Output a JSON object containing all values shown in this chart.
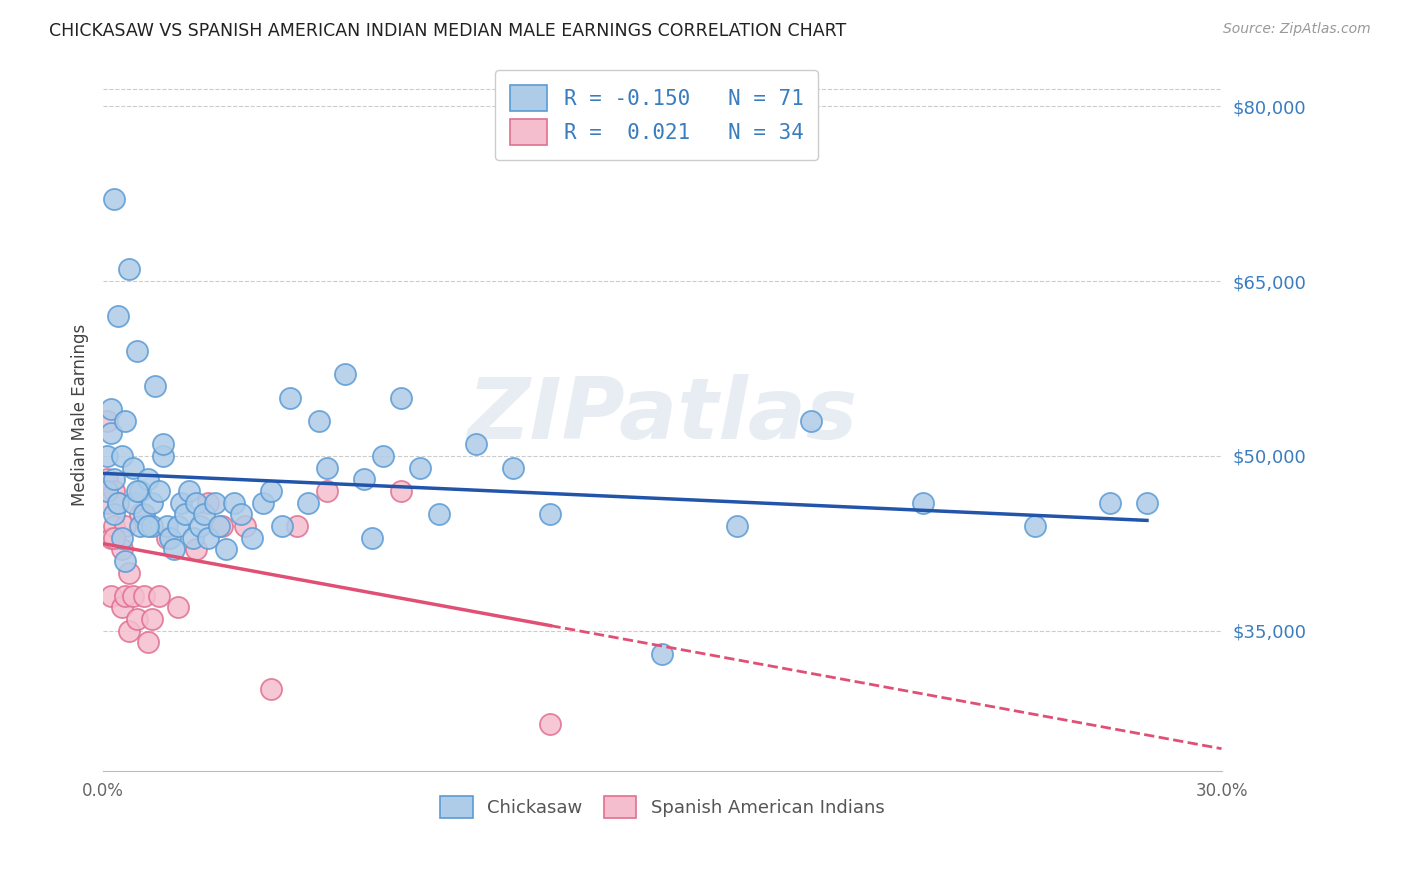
{
  "title": "CHICKASAW VS SPANISH AMERICAN INDIAN MEDIAN MALE EARNINGS CORRELATION CHART",
  "source": "Source: ZipAtlas.com",
  "ylabel": "Median Male Earnings",
  "xlim": [
    0.0,
    0.3
  ],
  "ylim": [
    23000,
    84000
  ],
  "ytick_vals_right": [
    35000,
    50000,
    65000,
    80000
  ],
  "ytick_labels_right": [
    "$35,000",
    "$50,000",
    "$65,000",
    "$80,000"
  ],
  "chickasaw_color": "#aecce8",
  "chickasaw_edge": "#5b9bd5",
  "spanish_color": "#f5bece",
  "spanish_edge": "#e07090",
  "trend_blue_color": "#2255aa",
  "trend_pink_solid_color": "#e05075",
  "trend_pink_dash_color": "#e05075",
  "watermark": "ZIPatlas",
  "watermark_color": "#ccd8e8",
  "legend_r_blue": "-0.150",
  "legend_n_blue": "71",
  "legend_r_pink": "0.021",
  "legend_n_pink": "34",
  "chickasaw_x": [
    0.001,
    0.001,
    0.002,
    0.003,
    0.003,
    0.003,
    0.004,
    0.005,
    0.005,
    0.006,
    0.007,
    0.008,
    0.008,
    0.009,
    0.01,
    0.01,
    0.011,
    0.012,
    0.013,
    0.013,
    0.014,
    0.015,
    0.016,
    0.017,
    0.018,
    0.019,
    0.02,
    0.021,
    0.022,
    0.023,
    0.024,
    0.025,
    0.026,
    0.027,
    0.028,
    0.03,
    0.031,
    0.033,
    0.035,
    0.037,
    0.04,
    0.043,
    0.045,
    0.048,
    0.05,
    0.055,
    0.058,
    0.06,
    0.065,
    0.07,
    0.072,
    0.075,
    0.08,
    0.085,
    0.09,
    0.1,
    0.11,
    0.12,
    0.15,
    0.17,
    0.19,
    0.22,
    0.25,
    0.27,
    0.28,
    0.002,
    0.004,
    0.006,
    0.009,
    0.012,
    0.016
  ],
  "chickasaw_y": [
    50000,
    47000,
    52000,
    45000,
    48000,
    72000,
    46000,
    43000,
    50000,
    41000,
    66000,
    46000,
    49000,
    59000,
    44000,
    47000,
    45000,
    48000,
    46000,
    44000,
    56000,
    47000,
    50000,
    44000,
    43000,
    42000,
    44000,
    46000,
    45000,
    47000,
    43000,
    46000,
    44000,
    45000,
    43000,
    46000,
    44000,
    42000,
    46000,
    45000,
    43000,
    46000,
    47000,
    44000,
    55000,
    46000,
    53000,
    49000,
    57000,
    48000,
    43000,
    50000,
    55000,
    49000,
    45000,
    51000,
    49000,
    45000,
    33000,
    44000,
    53000,
    46000,
    44000,
    46000,
    46000,
    54000,
    62000,
    53000,
    47000,
    44000,
    51000
  ],
  "spanish_x": [
    0.001,
    0.001,
    0.001,
    0.002,
    0.002,
    0.003,
    0.003,
    0.004,
    0.005,
    0.005,
    0.006,
    0.006,
    0.007,
    0.007,
    0.008,
    0.009,
    0.01,
    0.011,
    0.012,
    0.013,
    0.015,
    0.017,
    0.02,
    0.025,
    0.028,
    0.032,
    0.038,
    0.045,
    0.052,
    0.06,
    0.08,
    0.12,
    0.003,
    0.004
  ],
  "spanish_y": [
    48000,
    53000,
    46000,
    43000,
    38000,
    47000,
    44000,
    46000,
    37000,
    42000,
    44000,
    38000,
    40000,
    35000,
    38000,
    36000,
    45000,
    38000,
    34000,
    36000,
    38000,
    43000,
    37000,
    42000,
    46000,
    44000,
    44000,
    30000,
    44000,
    47000,
    47000,
    27000,
    43000,
    46000
  ]
}
